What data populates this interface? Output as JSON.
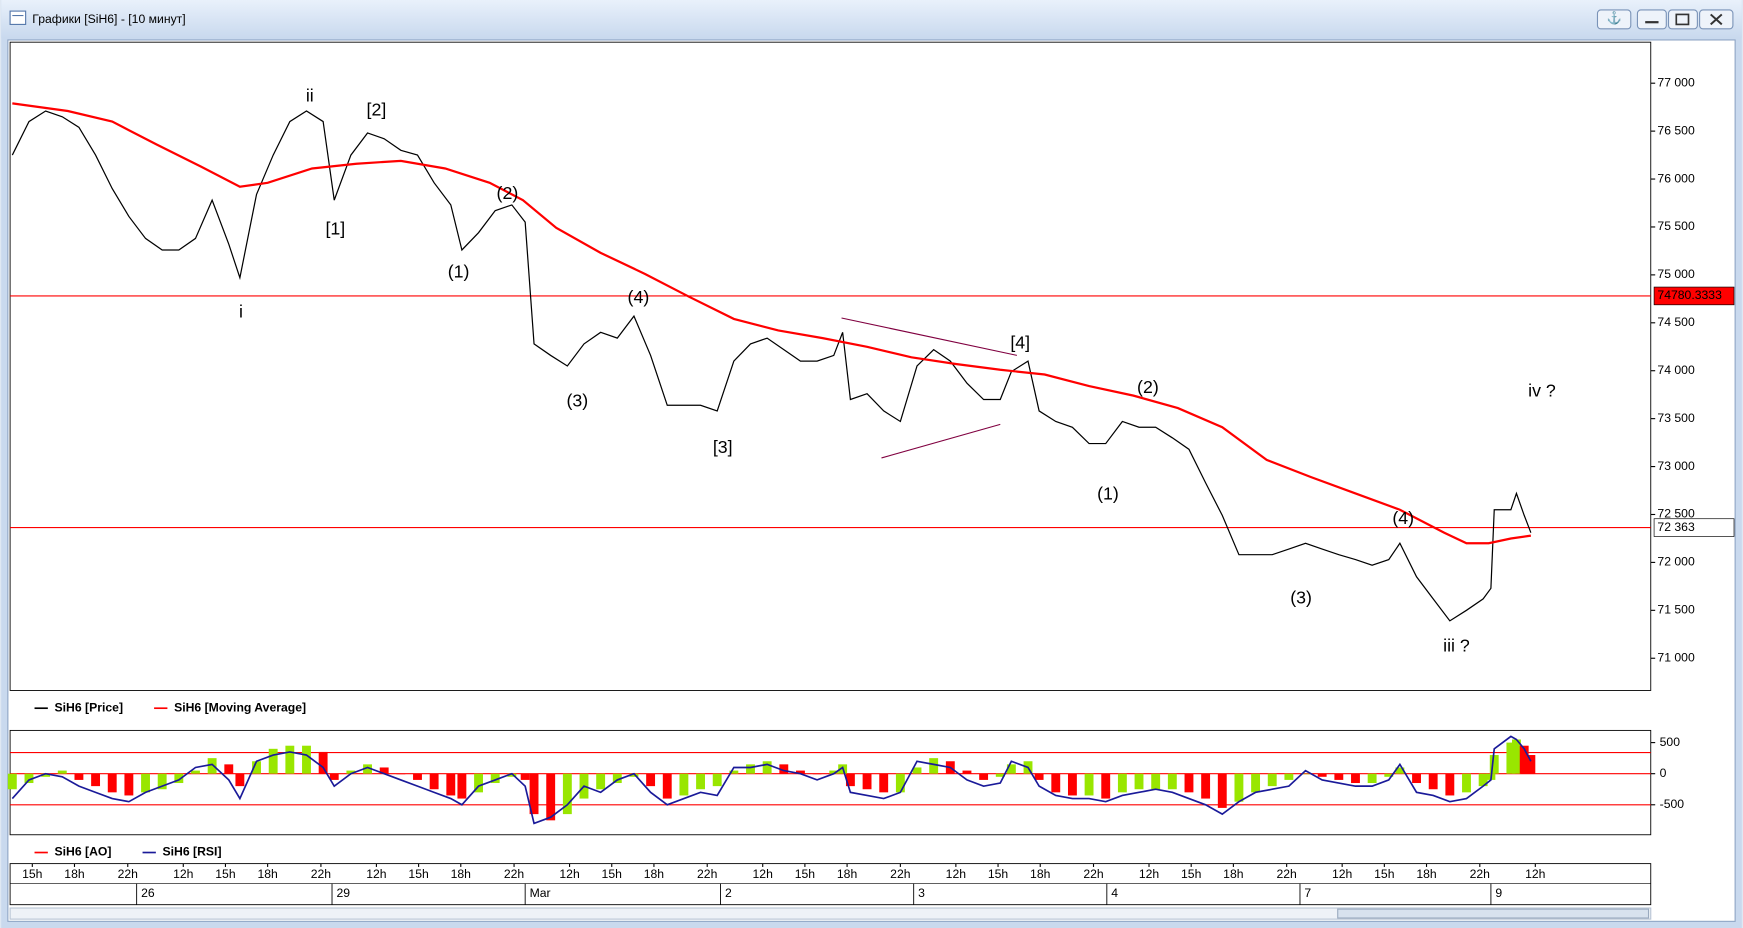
{
  "window": {
    "title": "Графики [SiH6] - [10 минут]"
  },
  "chart_data": [
    {
      "type": "line",
      "xlim": [
        8,
        1486
      ],
      "ylim": [
        70664,
        77428
      ],
      "yticks": [
        {
          "value": 71000,
          "label": "71 000"
        },
        {
          "value": 71500,
          "label": "71 500"
        },
        {
          "value": 72000,
          "label": "72 000"
        },
        {
          "value": 72500,
          "label": "72 500"
        },
        {
          "value": 73000,
          "label": "73 000"
        },
        {
          "value": 73500,
          "label": "73 500"
        },
        {
          "value": 74000,
          "label": "74 000"
        },
        {
          "value": 74500,
          "label": "74 500"
        },
        {
          "value": 75000,
          "label": "75 000"
        },
        {
          "value": 75500,
          "label": "75 500"
        },
        {
          "value": 76000,
          "label": "76 000"
        },
        {
          "value": 76500,
          "label": "76 500"
        },
        {
          "value": 77000,
          "label": "77 000"
        }
      ],
      "levels": [
        {
          "value": 74780.3333,
          "label": "74780.3333",
          "color": "#ff0000",
          "label_fill": "#ff0000",
          "label_color": "#ffffff"
        },
        {
          "value": 72363,
          "label": "72 363",
          "color": "#ff0000",
          "label_fill": "#ffffff",
          "label_color": "#000000"
        }
      ],
      "series": [
        {
          "name": "SiH6 [Price]",
          "color": "#000000",
          "x": [
            10,
            25,
            40,
            55,
            70,
            85,
            100,
            115,
            130,
            145,
            160,
            175,
            190,
            205,
            215,
            230,
            245,
            260,
            275,
            290,
            300,
            315,
            330,
            345,
            360,
            375,
            390,
            405,
            415,
            430,
            445,
            460,
            472,
            480,
            495,
            510,
            525,
            540,
            555,
            570,
            585,
            600,
            615,
            630,
            645,
            660,
            675,
            690,
            705,
            720,
            735,
            750,
            758,
            765,
            780,
            795,
            810,
            825,
            840,
            855,
            870,
            885,
            900,
            910,
            925,
            935,
            950,
            965,
            980,
            995,
            1010,
            1025,
            1040,
            1055,
            1070,
            1085,
            1100,
            1115,
            1130,
            1145,
            1160,
            1175,
            1190,
            1205,
            1220,
            1235,
            1250,
            1260,
            1275,
            1290,
            1305,
            1320,
            1335,
            1342,
            1345,
            1360,
            1365,
            1372,
            1378
          ],
          "values": [
            76250,
            76600,
            76710,
            76650,
            76540,
            76250,
            75900,
            75610,
            75380,
            75260,
            75260,
            75380,
            75780,
            75320,
            74970,
            75840,
            76250,
            76600,
            76710,
            76600,
            75780,
            76250,
            76480,
            76420,
            76300,
            76250,
            75960,
            75730,
            75260,
            75440,
            75670,
            75730,
            75550,
            74280,
            74160,
            74050,
            74280,
            74400,
            74340,
            74570,
            74160,
            73640,
            73640,
            73640,
            73580,
            74100,
            74280,
            74340,
            74220,
            74100,
            74100,
            74160,
            74400,
            73700,
            73760,
            73580,
            73470,
            74050,
            74220,
            74100,
            73870,
            73700,
            73700,
            73990,
            74100,
            73580,
            73470,
            73410,
            73240,
            73240,
            73470,
            73410,
            73410,
            73300,
            73180,
            72830,
            72490,
            72080,
            72080,
            72080,
            72140,
            72200,
            72140,
            72080,
            72030,
            71970,
            72030,
            72200,
            71850,
            71620,
            71390,
            71500,
            71620,
            71730,
            72550,
            72550,
            72720,
            72490,
            72310
          ]
        },
        {
          "name": "SiH6 [Moving Average]",
          "color": "#ff0000",
          "x": [
            10,
            60,
            100,
            140,
            180,
            215,
            240,
            280,
            320,
            360,
            400,
            440,
            470,
            500,
            540,
            580,
            620,
            660,
            700,
            740,
            780,
            820,
            860,
            900,
            940,
            980,
            1020,
            1060,
            1100,
            1140,
            1180,
            1220,
            1260,
            1300,
            1320,
            1340,
            1360,
            1378
          ],
          "values": [
            76790,
            76710,
            76600,
            76360,
            76130,
            75920,
            75960,
            76110,
            76160,
            76190,
            76110,
            75960,
            75780,
            75490,
            75230,
            75010,
            74770,
            74540,
            74420,
            74340,
            74250,
            74140,
            74070,
            74010,
            73960,
            73840,
            73740,
            73610,
            73410,
            73070,
            72890,
            72720,
            72550,
            72310,
            72200,
            72200,
            72250,
            72280
          ]
        }
      ],
      "triangle": {
        "color": "#800040",
        "upper": [
          [
            757,
            74550
          ],
          [
            915,
            74160
          ]
        ],
        "lower": [
          [
            793,
            73090
          ],
          [
            900,
            73440
          ]
        ]
      },
      "annotations": [
        {
          "text": "i",
          "x": 216,
          "y": 74604,
          "color": "#1a1acc"
        },
        {
          "text": "ii",
          "x": 278,
          "y": 76860,
          "color": "#1a1acc"
        },
        {
          "text": "[1]",
          "x": 301,
          "y": 75472,
          "color": "#000000"
        },
        {
          "text": "[2]",
          "x": 338,
          "y": 76711,
          "color": "#000000"
        },
        {
          "text": "(1)",
          "x": 412,
          "y": 75021,
          "color": "#000000"
        },
        {
          "text": "(2)",
          "x": 456,
          "y": 75843,
          "color": "#000000"
        },
        {
          "text": "(3)",
          "x": 519,
          "y": 73678,
          "color": "#000000"
        },
        {
          "text": "(4)",
          "x": 574,
          "y": 74754,
          "color": "#000000"
        },
        {
          "text": "[3]",
          "x": 650,
          "y": 73192,
          "color": "#000000"
        },
        {
          "text": "[4]",
          "x": 918,
          "y": 74280,
          "color": "#000000"
        },
        {
          "text": "(1)",
          "x": 997,
          "y": 72706,
          "color": "#000000"
        },
        {
          "text": "(2)",
          "x": 1033,
          "y": 73817,
          "color": "#000000"
        },
        {
          "text": "(3)",
          "x": 1171,
          "y": 71618,
          "color": "#000000"
        },
        {
          "text": "(4)",
          "x": 1263,
          "y": 72451,
          "color": "#000000"
        },
        {
          "text": "iii ?",
          "x": 1311,
          "y": 71120,
          "color": "#1a1acc"
        },
        {
          "text": "iv ?",
          "x": 1388,
          "y": 73782,
          "color": "#1a1acc"
        }
      ],
      "xticks": [
        {
          "value": 28,
          "label": "15h"
        },
        {
          "value": 66,
          "label": "18h"
        },
        {
          "value": 114,
          "label": "22h"
        },
        {
          "value": 164,
          "label": "12h"
        },
        {
          "value": 202,
          "label": "15h"
        },
        {
          "value": 240,
          "label": "18h"
        },
        {
          "value": 288,
          "label": "22h"
        },
        {
          "value": 338,
          "label": "12h"
        },
        {
          "value": 376,
          "label": "15h"
        },
        {
          "value": 414,
          "label": "18h"
        },
        {
          "value": 462,
          "label": "22h"
        },
        {
          "value": 512,
          "label": "12h"
        },
        {
          "value": 550,
          "label": "15h"
        },
        {
          "value": 588,
          "label": "18h"
        },
        {
          "value": 636,
          "label": "22h"
        },
        {
          "value": 686,
          "label": "12h"
        },
        {
          "value": 724,
          "label": "15h"
        },
        {
          "value": 762,
          "label": "18h"
        },
        {
          "value": 810,
          "label": "22h"
        },
        {
          "value": 860,
          "label": "12h"
        },
        {
          "value": 898,
          "label": "15h"
        },
        {
          "value": 936,
          "label": "18h"
        },
        {
          "value": 984,
          "label": "22h"
        },
        {
          "value": 1034,
          "label": "12h"
        },
        {
          "value": 1072,
          "label": "15h"
        },
        {
          "value": 1110,
          "label": "18h"
        },
        {
          "value": 1158,
          "label": "22h"
        },
        {
          "value": 1208,
          "label": "12h"
        },
        {
          "value": 1246,
          "label": "15h"
        },
        {
          "value": 1284,
          "label": "18h"
        },
        {
          "value": 1332,
          "label": "22h"
        },
        {
          "value": 1382,
          "label": "12h"
        }
      ],
      "day_ticks": [
        {
          "value": 122,
          "label": "26"
        },
        {
          "value": 298,
          "label": "29"
        },
        {
          "value": 472,
          "label": "Mar"
        },
        {
          "value": 648,
          "label": "2"
        },
        {
          "value": 822,
          "label": "3"
        },
        {
          "value": 996,
          "label": "4"
        },
        {
          "value": 1170,
          "label": "7"
        },
        {
          "value": 1342,
          "label": "9"
        }
      ]
    },
    {
      "type": "bar",
      "xlim": [
        8,
        1486
      ],
      "ylim": [
        -982,
        696
      ],
      "yticks": [
        -500,
        0,
        500
      ],
      "levels": [
        -500,
        0,
        340
      ],
      "level_color": "#ff0000",
      "series": [
        {
          "name": "SiH6 [AO]",
          "color": "#ff0000",
          "up_color": "#99e600",
          "down_color": "#ff0000",
          "x": [
            10,
            25,
            40,
            55,
            70,
            85,
            100,
            115,
            130,
            145,
            160,
            175,
            190,
            205,
            215,
            230,
            245,
            260,
            275,
            290,
            300,
            315,
            330,
            345,
            360,
            375,
            390,
            405,
            415,
            430,
            445,
            460,
            472,
            480,
            495,
            510,
            525,
            540,
            555,
            570,
            585,
            600,
            615,
            630,
            645,
            660,
            675,
            690,
            705,
            720,
            735,
            750,
            758,
            765,
            780,
            795,
            810,
            825,
            840,
            855,
            870,
            885,
            900,
            910,
            925,
            935,
            950,
            965,
            980,
            995,
            1010,
            1025,
            1040,
            1055,
            1070,
            1085,
            1100,
            1115,
            1130,
            1145,
            1160,
            1175,
            1190,
            1205,
            1220,
            1235,
            1250,
            1260,
            1275,
            1290,
            1305,
            1320,
            1335,
            1342,
            1345,
            1360,
            1365,
            1372,
            1378
          ],
          "values": [
            -250,
            -150,
            -50,
            50,
            -100,
            -200,
            -300,
            -350,
            -300,
            -250,
            -150,
            50,
            250,
            150,
            -200,
            200,
            400,
            450,
            450,
            350,
            -100,
            50,
            150,
            100,
            0,
            -100,
            -250,
            -350,
            -400,
            -300,
            -150,
            -50,
            -100,
            -650,
            -750,
            -650,
            -400,
            -250,
            -150,
            -50,
            -200,
            -400,
            -350,
            -250,
            -200,
            50,
            150,
            200,
            150,
            50,
            0,
            50,
            150,
            -200,
            -250,
            -300,
            -300,
            100,
            250,
            200,
            50,
            -100,
            -50,
            150,
            200,
            -100,
            -300,
            -350,
            -350,
            -400,
            -300,
            -250,
            -250,
            -250,
            -300,
            -400,
            -550,
            -450,
            -300,
            -200,
            -100,
            0,
            -50,
            -100,
            -150,
            -150,
            -50,
            100,
            -150,
            -250,
            -350,
            -300,
            -200,
            -100,
            300,
            500,
            550,
            450,
            300
          ]
        },
        {
          "name": "SiH6 [RSI]",
          "color": "#1a1a99",
          "type": "line",
          "x": [
            10,
            25,
            40,
            55,
            70,
            85,
            100,
            115,
            130,
            145,
            160,
            175,
            190,
            205,
            215,
            230,
            245,
            260,
            275,
            290,
            300,
            315,
            330,
            345,
            360,
            375,
            390,
            405,
            415,
            430,
            445,
            460,
            472,
            480,
            495,
            510,
            525,
            540,
            555,
            570,
            585,
            600,
            615,
            630,
            645,
            660,
            675,
            690,
            705,
            720,
            735,
            750,
            758,
            765,
            780,
            795,
            810,
            825,
            840,
            855,
            870,
            885,
            900,
            910,
            925,
            935,
            950,
            965,
            980,
            995,
            1010,
            1025,
            1040,
            1055,
            1070,
            1085,
            1100,
            1115,
            1130,
            1145,
            1160,
            1175,
            1190,
            1205,
            1220,
            1235,
            1250,
            1260,
            1275,
            1290,
            1305,
            1320,
            1335,
            1342,
            1345,
            1360,
            1365,
            1372,
            1378
          ],
          "values": [
            -400,
            -100,
            0,
            -50,
            -200,
            -300,
            -400,
            -450,
            -300,
            -200,
            -100,
            100,
            150,
            -100,
            -400,
            200,
            300,
            350,
            300,
            100,
            -200,
            0,
            100,
            0,
            -100,
            -200,
            -300,
            -400,
            -500,
            -200,
            -100,
            0,
            -200,
            -800,
            -700,
            -500,
            -200,
            -300,
            -100,
            0,
            -300,
            -500,
            -400,
            -300,
            -350,
            100,
            100,
            150,
            50,
            0,
            -100,
            0,
            100,
            -300,
            -350,
            -400,
            -300,
            200,
            150,
            100,
            -100,
            -200,
            -150,
            200,
            100,
            -200,
            -350,
            -400,
            -400,
            -450,
            -350,
            -300,
            -250,
            -300,
            -400,
            -500,
            -650,
            -450,
            -300,
            -250,
            -200,
            50,
            -100,
            -150,
            -200,
            -200,
            -100,
            150,
            -300,
            -350,
            -450,
            -400,
            -200,
            -100,
            400,
            600,
            550,
            400,
            200
          ]
        }
      ]
    }
  ]
}
